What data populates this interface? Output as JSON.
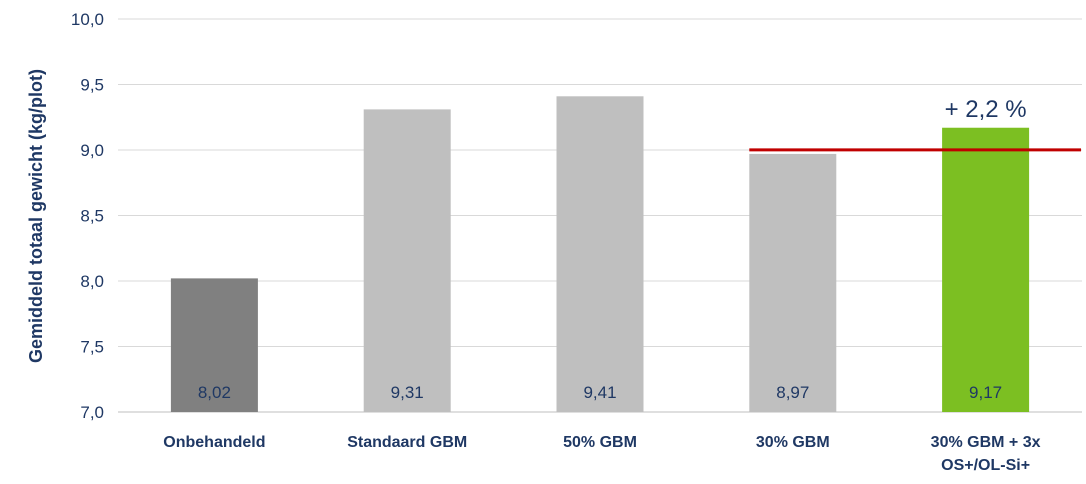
{
  "chart_data": {
    "type": "bar",
    "categories": [
      [
        "Onbehandeld"
      ],
      [
        "Standaard GBM"
      ],
      [
        "50% GBM"
      ],
      [
        "30% GBM"
      ],
      [
        "30% GBM + 3x",
        "OS+/OL-Si+"
      ]
    ],
    "values": [
      8.02,
      9.31,
      9.41,
      8.97,
      9.17
    ],
    "value_labels": [
      "8,02",
      "9,31",
      "9,41",
      "8,97",
      "9,17"
    ],
    "ylabel": "Gemiddeld totaal  gewicht (kg/plot)",
    "ylim": [
      7.0,
      10.0
    ],
    "yticks": [
      7.0,
      7.5,
      8.0,
      8.5,
      9.0,
      9.5,
      10.0
    ],
    "ytick_labels": [
      "7,0",
      "7,5",
      "8,0",
      "8,5",
      "9,0",
      "9,5",
      "10,0"
    ],
    "grid": true,
    "bar_colors": [
      "#808080",
      "#bfbfbf",
      "#bfbfbf",
      "#bfbfbf",
      "#7cbf22"
    ],
    "reference_line": {
      "value": 8.97,
      "from_category": 3,
      "to_category": 4,
      "color": "#c00000"
    },
    "annotation": {
      "text": "+ 2,2 %",
      "category": 4
    }
  }
}
